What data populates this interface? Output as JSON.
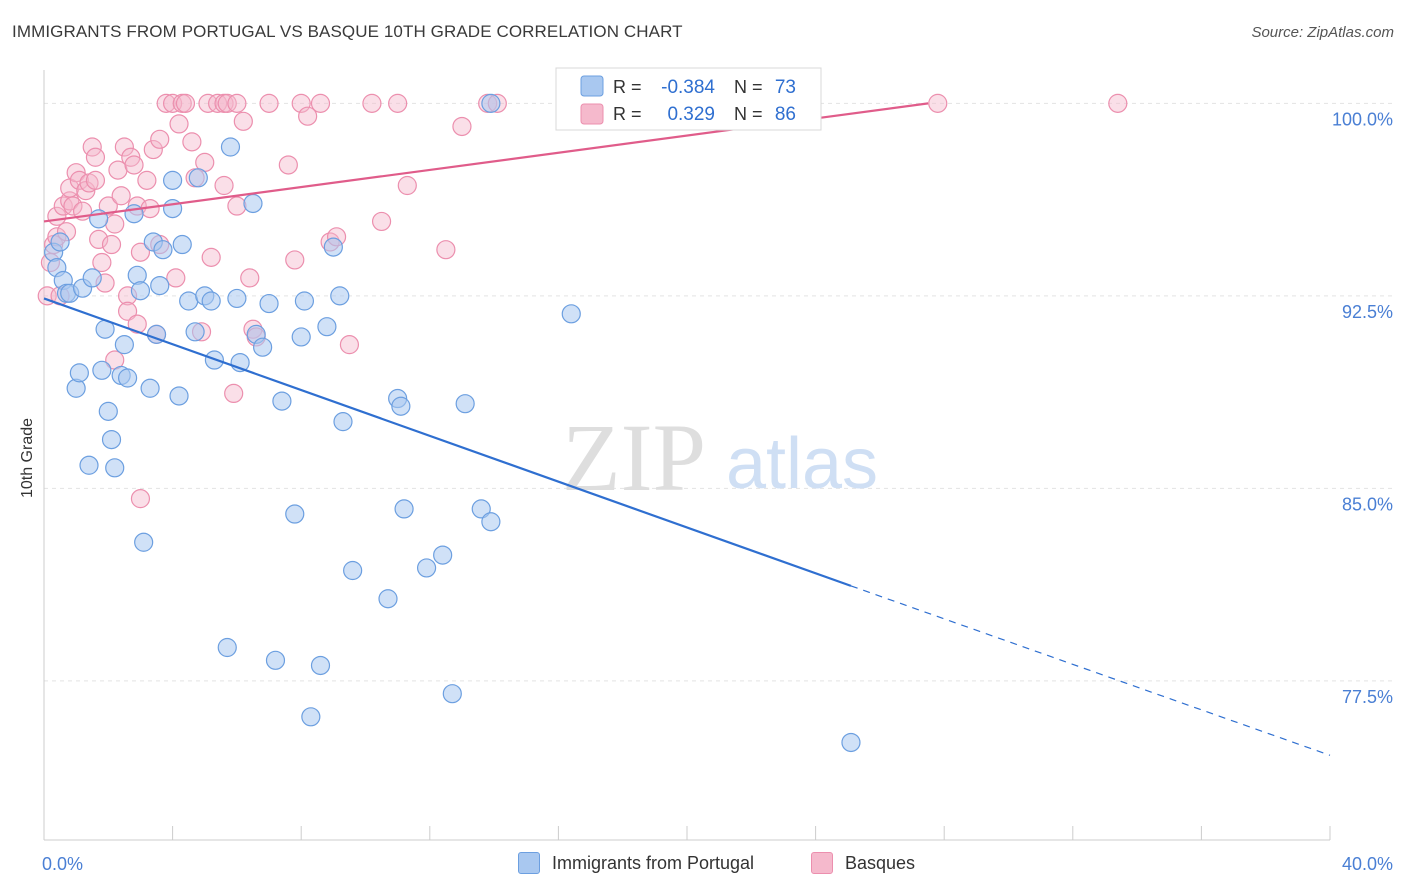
{
  "title": "IMMIGRANTS FROM PORTUGAL VS BASQUE 10TH GRADE CORRELATION CHART",
  "source": "Source: ZipAtlas.com",
  "watermark": {
    "zip": "ZIP",
    "atlas": "atlas"
  },
  "colors": {
    "blue_fill": "#a9c8f0",
    "blue_stroke": "#6c9fe0",
    "blue_line": "#2f6fd0",
    "pink_fill": "#f5b9cc",
    "pink_stroke": "#ec8fae",
    "pink_line": "#e05c8a",
    "axis_label": "#4a7fd4",
    "grid": "#e3e3e3"
  },
  "legend": {
    "rows": [
      {
        "r_label": "R =",
        "r_value": "-0.384",
        "n_label": "N =",
        "n_value": "73"
      },
      {
        "r_label": "R =",
        "r_value": "0.329",
        "n_label": "N =",
        "n_value": "86"
      }
    ]
  },
  "bottom_legend": [
    "Immigrants from Portugal",
    "Basques"
  ],
  "chart_data": {
    "type": "scatter",
    "title": "IMMIGRANTS FROM PORTUGAL VS BASQUE 10TH GRADE CORRELATION CHART",
    "xlabel": "",
    "ylabel": "10th Grade",
    "xlim": [
      0,
      40
    ],
    "ylim": [
      71.3,
      101.3
    ],
    "x_tick_labels": [
      "0.0%",
      "40.0%"
    ],
    "y_tick_labels": [
      "100.0%",
      "92.5%",
      "85.0%",
      "77.5%"
    ],
    "y_ticks": [
      100.0,
      92.5,
      85.0,
      77.5
    ],
    "legend_position": "top-center",
    "series": [
      {
        "name": "Immigrants from Portugal",
        "r": -0.384,
        "n": 73,
        "trend": {
          "x0": 0,
          "y0": 92.4,
          "x1": 25.1,
          "y1": 81.2,
          "dash_to_x": 40,
          "dash_to_y": 74.6
        },
        "points": [
          [
            0.3,
            94.2
          ],
          [
            0.4,
            93.6
          ],
          [
            0.5,
            94.6
          ],
          [
            0.6,
            93.1
          ],
          [
            0.7,
            92.6
          ],
          [
            0.8,
            92.6
          ],
          [
            1.0,
            88.9
          ],
          [
            1.1,
            89.5
          ],
          [
            1.2,
            92.8
          ],
          [
            1.4,
            85.9
          ],
          [
            1.5,
            93.2
          ],
          [
            1.7,
            95.5
          ],
          [
            1.8,
            89.6
          ],
          [
            1.9,
            91.2
          ],
          [
            2.0,
            88.0
          ],
          [
            2.1,
            86.9
          ],
          [
            2.2,
            85.8
          ],
          [
            2.4,
            89.4
          ],
          [
            2.5,
            90.6
          ],
          [
            2.6,
            89.3
          ],
          [
            2.8,
            95.7
          ],
          [
            2.9,
            93.3
          ],
          [
            3.0,
            92.7
          ],
          [
            3.1,
            82.9
          ],
          [
            3.3,
            88.9
          ],
          [
            3.4,
            94.6
          ],
          [
            3.5,
            91.0
          ],
          [
            3.6,
            92.9
          ],
          [
            3.7,
            94.3
          ],
          [
            4.0,
            97.0
          ],
          [
            4.0,
            95.9
          ],
          [
            4.2,
            88.6
          ],
          [
            4.3,
            94.5
          ],
          [
            4.5,
            92.3
          ],
          [
            4.7,
            91.1
          ],
          [
            4.8,
            97.1
          ],
          [
            5.0,
            92.5
          ],
          [
            5.2,
            92.3
          ],
          [
            5.3,
            90.0
          ],
          [
            5.7,
            78.8
          ],
          [
            5.8,
            98.3
          ],
          [
            6.0,
            92.4
          ],
          [
            6.1,
            89.9
          ],
          [
            6.5,
            96.1
          ],
          [
            6.6,
            91.0
          ],
          [
            6.8,
            90.5
          ],
          [
            7.0,
            92.2
          ],
          [
            7.2,
            78.3
          ],
          [
            7.4,
            88.4
          ],
          [
            7.8,
            84.0
          ],
          [
            8.0,
            90.9
          ],
          [
            8.1,
            92.3
          ],
          [
            8.3,
            76.1
          ],
          [
            8.6,
            78.1
          ],
          [
            8.8,
            91.3
          ],
          [
            9.0,
            94.4
          ],
          [
            9.2,
            92.5
          ],
          [
            9.3,
            87.6
          ],
          [
            9.6,
            81.8
          ],
          [
            10.7,
            80.7
          ],
          [
            11.0,
            88.5
          ],
          [
            11.1,
            88.2
          ],
          [
            11.2,
            84.2
          ],
          [
            11.9,
            81.9
          ],
          [
            12.4,
            82.4
          ],
          [
            12.7,
            77.0
          ],
          [
            13.1,
            88.3
          ],
          [
            13.6,
            84.2
          ],
          [
            13.9,
            83.7
          ],
          [
            13.9,
            100.0
          ],
          [
            16.4,
            91.8
          ],
          [
            17.3,
            100.0
          ],
          [
            25.1,
            75.1
          ]
        ]
      },
      {
        "name": "Basques",
        "r": 0.329,
        "n": 86,
        "trend": {
          "x0": 0,
          "y0": 95.4,
          "x1": 27.5,
          "y1": 100.0
        },
        "points": [
          [
            0.1,
            92.5
          ],
          [
            0.2,
            93.8
          ],
          [
            0.3,
            94.5
          ],
          [
            0.4,
            94.8
          ],
          [
            0.4,
            95.6
          ],
          [
            0.5,
            92.5
          ],
          [
            0.6,
            96.0
          ],
          [
            0.7,
            95.0
          ],
          [
            0.8,
            96.2
          ],
          [
            0.8,
            96.7
          ],
          [
            0.9,
            96.0
          ],
          [
            1.0,
            97.3
          ],
          [
            1.1,
            97.0
          ],
          [
            1.2,
            95.8
          ],
          [
            1.3,
            96.6
          ],
          [
            1.4,
            96.9
          ],
          [
            1.5,
            98.3
          ],
          [
            1.6,
            97.9
          ],
          [
            1.6,
            97.0
          ],
          [
            1.7,
            94.7
          ],
          [
            1.8,
            93.8
          ],
          [
            1.9,
            93.0
          ],
          [
            2.0,
            96.0
          ],
          [
            2.1,
            94.5
          ],
          [
            2.2,
            95.3
          ],
          [
            2.2,
            90.0
          ],
          [
            2.3,
            97.4
          ],
          [
            2.4,
            96.4
          ],
          [
            2.5,
            98.3
          ],
          [
            2.6,
            92.5
          ],
          [
            2.6,
            91.9
          ],
          [
            2.7,
            97.9
          ],
          [
            2.8,
            97.6
          ],
          [
            2.9,
            96.0
          ],
          [
            2.9,
            91.4
          ],
          [
            3.0,
            94.2
          ],
          [
            3.0,
            84.6
          ],
          [
            3.2,
            97.0
          ],
          [
            3.3,
            95.9
          ],
          [
            3.4,
            98.2
          ],
          [
            3.5,
            91.0
          ],
          [
            3.6,
            94.5
          ],
          [
            3.6,
            98.6
          ],
          [
            3.8,
            100.0
          ],
          [
            4.0,
            100.0
          ],
          [
            4.1,
            93.2
          ],
          [
            4.2,
            99.2
          ],
          [
            4.3,
            100.0
          ],
          [
            4.4,
            100.0
          ],
          [
            4.6,
            98.5
          ],
          [
            4.7,
            97.1
          ],
          [
            4.9,
            91.1
          ],
          [
            5.0,
            97.7
          ],
          [
            5.1,
            100.0
          ],
          [
            5.2,
            94.0
          ],
          [
            5.4,
            100.0
          ],
          [
            5.6,
            100.0
          ],
          [
            5.6,
            96.8
          ],
          [
            5.7,
            100.0
          ],
          [
            5.9,
            88.7
          ],
          [
            6.0,
            96.0
          ],
          [
            6.0,
            100.0
          ],
          [
            6.2,
            99.3
          ],
          [
            6.4,
            93.2
          ],
          [
            6.5,
            91.2
          ],
          [
            6.6,
            90.9
          ],
          [
            7.0,
            100.0
          ],
          [
            7.6,
            97.6
          ],
          [
            7.8,
            93.9
          ],
          [
            8.0,
            100.0
          ],
          [
            8.2,
            99.5
          ],
          [
            8.6,
            100.0
          ],
          [
            8.9,
            94.6
          ],
          [
            9.1,
            94.8
          ],
          [
            9.5,
            90.6
          ],
          [
            10.2,
            100.0
          ],
          [
            10.5,
            95.4
          ],
          [
            11.0,
            100.0
          ],
          [
            11.3,
            96.8
          ],
          [
            12.5,
            94.3
          ],
          [
            13.0,
            99.1
          ],
          [
            13.8,
            100.0
          ],
          [
            14.1,
            100.0
          ],
          [
            20.5,
            100.0
          ],
          [
            27.8,
            100.0
          ],
          [
            33.4,
            100.0
          ]
        ]
      }
    ]
  }
}
